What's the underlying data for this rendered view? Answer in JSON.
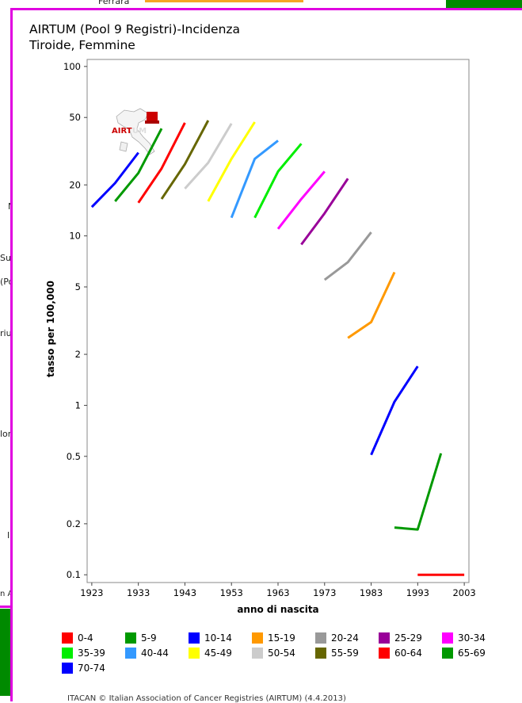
{
  "background": {
    "fragments": [
      {
        "text": "Ferrara",
        "name": "bg-ferrara"
      },
      {
        "text": "N",
        "name": "bg-frag-n"
      },
      {
        "text": "Su",
        "name": "bg-frag-su"
      },
      {
        "text": "(Po",
        "name": "bg-frag-po"
      },
      {
        "text": "riuli",
        "name": "bg-frag-riuli"
      },
      {
        "text": "lor",
        "name": "bg-frag-lor"
      },
      {
        "text": "I",
        "name": "bg-frag-i"
      },
      {
        "text": "n A",
        "name": "bg-frag-na"
      }
    ],
    "colors": {
      "frame": "#e000e0",
      "green": "#008a00",
      "orange": "#f5a623"
    }
  },
  "logo": {
    "text": "AIRTUM"
  },
  "chart_data": {
    "type": "line",
    "title": "AIRTUM (Pool 9 Registri)-Incidenza",
    "subtitle": "Tiroide, Femmine",
    "xlabel": "anno di nascita",
    "ylabel": "tasso per 100,000",
    "xlim": [
      1922,
      2004
    ],
    "ylim": [
      0.09,
      110
    ],
    "yscale": "log",
    "xticks": [
      "1923",
      "1933",
      "1943",
      "1953",
      "1963",
      "1973",
      "1983",
      "1993",
      "2003"
    ],
    "yticks": [
      "100",
      "50",
      "20",
      "10",
      "5",
      "2",
      "1",
      "0.5",
      "0.2",
      "0.1"
    ],
    "grid": false,
    "legend_position": "bottom",
    "series": [
      {
        "name": "0-4",
        "color": "#ff0000",
        "points": [
          [
            1993,
            0.1
          ],
          [
            2003,
            0.1
          ]
        ]
      },
      {
        "name": "5-9",
        "color": "#009900",
        "points": []
      },
      {
        "name": "10-14",
        "color": "#0000ff",
        "points": []
      },
      {
        "name": "15-19",
        "color": "#ff9900",
        "points": [
          [
            1978,
            2.5
          ],
          [
            1983,
            3.1
          ],
          [
            1988,
            6.1
          ]
        ]
      },
      {
        "name": "20-24",
        "color": "#999999",
        "points": [
          [
            1973,
            5.5
          ],
          [
            1978,
            7.0
          ],
          [
            1983,
            10.5
          ]
        ]
      },
      {
        "name": "25-29",
        "color": "#990099",
        "points": [
          [
            1968,
            8.9
          ],
          [
            1973,
            13.6
          ],
          [
            1978,
            21.8
          ]
        ]
      },
      {
        "name": "30-34",
        "color": "#ff00ff",
        "points": [
          [
            1963,
            11.0
          ],
          [
            1968,
            16.5
          ],
          [
            1973,
            24.0
          ]
        ]
      },
      {
        "name": "35-39",
        "color": "#00ee00",
        "points": [
          [
            1958,
            12.8
          ],
          [
            1963,
            24.0
          ],
          [
            1968,
            35.0
          ]
        ]
      },
      {
        "name": "40-44",
        "color": "#3399ff",
        "points": [
          [
            1953,
            12.8
          ],
          [
            1958,
            28.5
          ],
          [
            1963,
            36.5
          ]
        ]
      },
      {
        "name": "45-49",
        "color": "#ffff00",
        "points": [
          [
            1948,
            16.0
          ],
          [
            1953,
            28.5
          ],
          [
            1958,
            47.0
          ]
        ]
      },
      {
        "name": "50-54",
        "color": "#cccccc",
        "points": [
          [
            1943,
            19.0
          ],
          [
            1948,
            27.0
          ],
          [
            1953,
            46.0
          ]
        ]
      },
      {
        "name": "55-59",
        "color": "#666600",
        "points": [
          [
            1938,
            16.5
          ],
          [
            1943,
            26.5
          ],
          [
            1948,
            48.0
          ]
        ]
      },
      {
        "name": "60-64",
        "color": "#ff0000",
        "points": [
          [
            1933,
            15.7
          ],
          [
            1938,
            25.0
          ],
          [
            1943,
            46.5
          ]
        ]
      },
      {
        "name": "65-69",
        "color": "#009900",
        "points": [
          [
            1928,
            16.0
          ],
          [
            1933,
            23.5
          ],
          [
            1938,
            43.0
          ]
        ]
      },
      {
        "name": "70-74",
        "color": "#0000ff",
        "points": [
          [
            1923,
            14.8
          ],
          [
            1928,
            20.5
          ],
          [
            1933,
            31.0
          ]
        ]
      },
      {
        "name": "10-14-lower",
        "color": "#0000ff",
        "legend": false,
        "points": [
          [
            1983,
            0.51
          ],
          [
            1988,
            1.05
          ],
          [
            1993,
            1.7
          ]
        ]
      },
      {
        "name": "5-9-lower",
        "color": "#009900",
        "legend": false,
        "points": [
          [
            1988,
            0.19
          ],
          [
            1993,
            0.185
          ],
          [
            1998,
            0.52
          ]
        ]
      }
    ],
    "legend": [
      {
        "label": "0-4",
        "color": "#ff0000"
      },
      {
        "label": "5-9",
        "color": "#009900"
      },
      {
        "label": "10-14",
        "color": "#0000ff"
      },
      {
        "label": "15-19",
        "color": "#ff9900"
      },
      {
        "label": "20-24",
        "color": "#999999"
      },
      {
        "label": "25-29",
        "color": "#990099"
      },
      {
        "label": "30-34",
        "color": "#ff00ff"
      },
      {
        "label": "35-39",
        "color": "#00ee00"
      },
      {
        "label": "40-44",
        "color": "#3399ff"
      },
      {
        "label": "45-49",
        "color": "#ffff00"
      },
      {
        "label": "50-54",
        "color": "#cccccc"
      },
      {
        "label": "55-59",
        "color": "#666600"
      },
      {
        "label": "60-64",
        "color": "#ff0000"
      },
      {
        "label": "65-69",
        "color": "#009900"
      },
      {
        "label": "70-74",
        "color": "#0000ff"
      }
    ]
  },
  "footer": {
    "text": "ITACAN © Italian Association of Cancer Registries (AIRTUM) (4.4.2013)"
  }
}
